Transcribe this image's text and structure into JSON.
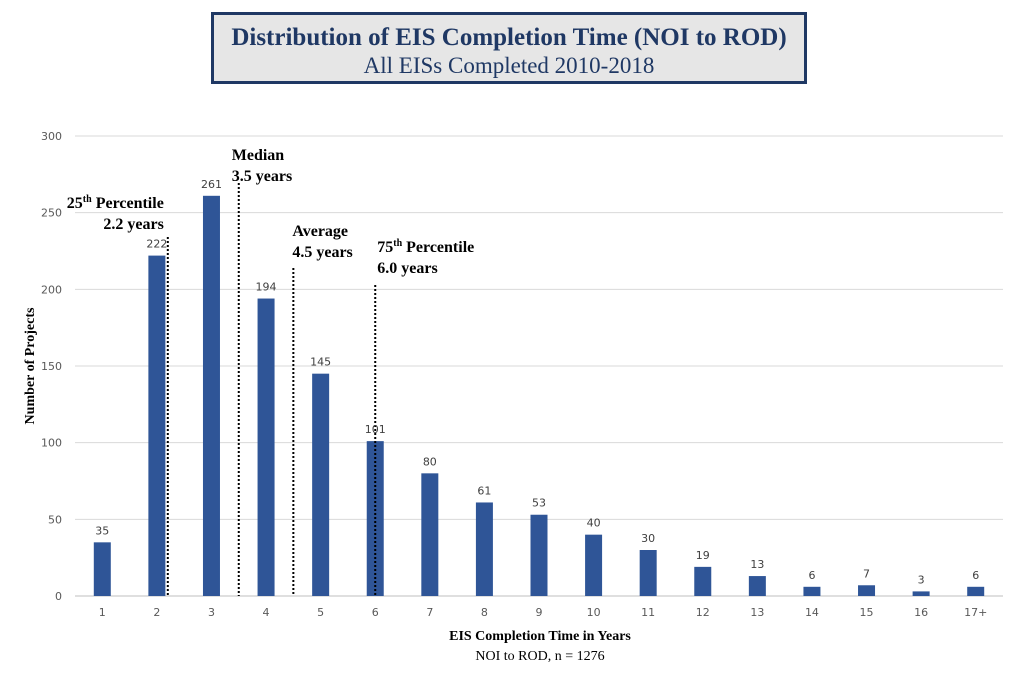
{
  "title": {
    "main": "Distribution of EIS Completion Time (NOI to ROD)",
    "sub": "All EISs Completed 2010-2018"
  },
  "colors": {
    "bar": "#2f5597",
    "title_border": "#1f3864",
    "title_bg": "#e6e6e6",
    "grid": "#d9d9d9"
  },
  "chart_data": {
    "type": "bar",
    "title": "Distribution of EIS Completion Time (NOI to ROD)",
    "subtitle": "All EISs Completed 2010-2018",
    "categories": [
      "1",
      "2",
      "3",
      "4",
      "5",
      "6",
      "7",
      "8",
      "9",
      "10",
      "11",
      "12",
      "13",
      "14",
      "15",
      "16",
      "17+"
    ],
    "values": [
      35,
      222,
      261,
      194,
      145,
      101,
      80,
      61,
      53,
      40,
      30,
      19,
      13,
      6,
      7,
      3,
      6
    ],
    "xlabel": "EIS Completion Time in Years",
    "xlabel_sub": "NOI to ROD, n = 1276",
    "ylabel": "Number of Projects",
    "ylim": [
      0,
      300
    ],
    "yticks": [
      0,
      50,
      100,
      150,
      200,
      250,
      300
    ],
    "grid": true,
    "annotations": [
      {
        "id": "p25",
        "lines": [
          [
            "25",
            "th",
            " Percentile"
          ],
          [
            "",
            "",
            "2.2 years"
          ]
        ],
        "x": 2.2,
        "align": "end"
      },
      {
        "id": "median",
        "lines": [
          [
            "",
            "",
            "Median"
          ],
          [
            "",
            "",
            "3.5 years"
          ]
        ],
        "x": 3.5,
        "align": "start"
      },
      {
        "id": "average",
        "lines": [
          [
            "",
            "",
            "Average"
          ],
          [
            "",
            "",
            "4.5 years"
          ]
        ],
        "x": 4.5,
        "align": "start"
      },
      {
        "id": "p75",
        "lines": [
          [
            "75",
            "th",
            " Percentile"
          ],
          [
            "",
            "",
            "6.0 years"
          ]
        ],
        "x": 6.0,
        "align": "start"
      }
    ]
  }
}
